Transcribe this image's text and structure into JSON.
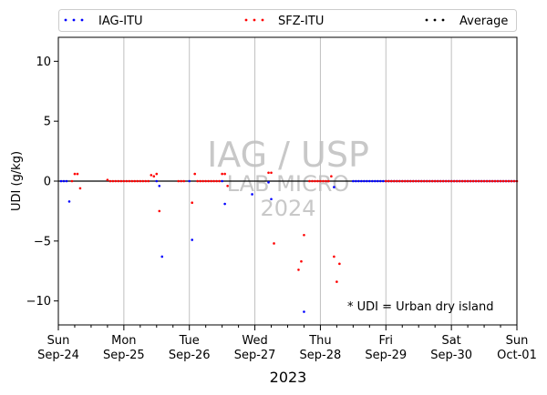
{
  "chart_data": {
    "type": "scatter",
    "title": "",
    "xlabel": "2023",
    "ylabel": "UDI (g/kg)",
    "ylim": [
      -12,
      12
    ],
    "xlim": [
      "2023-09-24",
      "2023-10-01"
    ],
    "yticks": [
      10,
      5,
      0,
      -5,
      -10
    ],
    "ytick_labels": [
      "10",
      "5",
      "0",
      "−5",
      "−10"
    ],
    "xticks": [
      {
        "date": "2023-09-24",
        "day": "Sun",
        "label": "Sep-24"
      },
      {
        "date": "2023-09-25",
        "day": "Mon",
        "label": "Sep-25"
      },
      {
        "date": "2023-09-26",
        "day": "Tue",
        "label": "Sep-26"
      },
      {
        "date": "2023-09-27",
        "day": "Wed",
        "label": "Sep-27"
      },
      {
        "date": "2023-09-28",
        "day": "Thu",
        "label": "Sep-28"
      },
      {
        "date": "2023-09-29",
        "day": "Fri",
        "label": "Sep-29"
      },
      {
        "date": "2023-09-30",
        "day": "Sat",
        "label": "Sep-30"
      },
      {
        "date": "2023-10-01",
        "day": "Sun",
        "label": "Oct-01"
      }
    ],
    "grid": "vertical lines at each day",
    "legend": {
      "placement": "top",
      "entries": [
        {
          "name": "IAG-ITU",
          "color": "#0000ff"
        },
        {
          "name": "SFZ-ITU",
          "color": "#ff0000"
        },
        {
          "name": "Average",
          "color": "#000000"
        }
      ]
    },
    "watermark": [
      "IAG / USP",
      "LAB MICRO",
      "2024"
    ],
    "annotation": "* UDI = Urban dry island",
    "series": [
      {
        "name": "IAG-ITU",
        "color": "#0000ff",
        "points": [
          {
            "x": "2023-09-24 01:00",
            "y": 0
          },
          {
            "x": "2023-09-24 02:00",
            "y": 0
          },
          {
            "x": "2023-09-24 03:00",
            "y": 0
          },
          {
            "x": "2023-09-24 04:00",
            "y": -1.7
          },
          {
            "x": "2023-09-25 12:00",
            "y": 0
          },
          {
            "x": "2023-09-25 13:00",
            "y": -0.4
          },
          {
            "x": "2023-09-25 14:00",
            "y": -6.3
          },
          {
            "x": "2023-09-26 00:00",
            "y": 0
          },
          {
            "x": "2023-09-26 01:00",
            "y": -4.9
          },
          {
            "x": "2023-09-26 12:00",
            "y": 0
          },
          {
            "x": "2023-09-26 13:00",
            "y": -1.9
          },
          {
            "x": "2023-09-26 23:00",
            "y": -1.1
          },
          {
            "x": "2023-09-27 05:00",
            "y": -0.1
          },
          {
            "x": "2023-09-27 06:00",
            "y": -1.5
          },
          {
            "x": "2023-09-27 18:00",
            "y": -10.9
          },
          {
            "x": "2023-09-28 05:00",
            "y": -0.5
          },
          {
            "x": "2023-09-28 12:00",
            "y": 0
          },
          {
            "x": "2023-09-28 13:00",
            "y": 0
          },
          {
            "x": "2023-09-28 14:00",
            "y": 0
          },
          {
            "x": "2023-09-28 15:00",
            "y": 0
          },
          {
            "x": "2023-09-28 16:00",
            "y": 0
          },
          {
            "x": "2023-09-28 17:00",
            "y": 0
          },
          {
            "x": "2023-09-28 18:00",
            "y": 0
          },
          {
            "x": "2023-09-28 19:00",
            "y": 0
          },
          {
            "x": "2023-09-28 20:00",
            "y": 0
          },
          {
            "x": "2023-09-28 21:00",
            "y": 0
          },
          {
            "x": "2023-09-28 22:00",
            "y": 0
          },
          {
            "x": "2023-09-28 23:00",
            "y": 0
          },
          {
            "x": "2023-09-29 00:00",
            "y": 0
          },
          {
            "x": "2023-09-29 01:00",
            "y": 0
          },
          {
            "x": "2023-09-29 02:00",
            "y": 0
          },
          {
            "x": "2023-09-29 03:00",
            "y": 0
          },
          {
            "x": "2023-09-29 04:00",
            "y": 0
          },
          {
            "x": "2023-09-29 05:00",
            "y": 0
          },
          {
            "x": "2023-09-29 06:00",
            "y": 0
          },
          {
            "x": "2023-09-29 07:00",
            "y": 0
          },
          {
            "x": "2023-09-29 08:00",
            "y": 0
          },
          {
            "x": "2023-09-29 09:00",
            "y": 0
          },
          {
            "x": "2023-09-29 10:00",
            "y": 0
          },
          {
            "x": "2023-09-29 11:00",
            "y": 0
          },
          {
            "x": "2023-09-29 12:00",
            "y": 0
          },
          {
            "x": "2023-09-29 13:00",
            "y": 0
          },
          {
            "x": "2023-09-29 14:00",
            "y": 0
          },
          {
            "x": "2023-09-29 15:00",
            "y": 0
          },
          {
            "x": "2023-09-29 16:00",
            "y": 0
          },
          {
            "x": "2023-09-29 17:00",
            "y": 0
          },
          {
            "x": "2023-09-29 18:00",
            "y": 0
          },
          {
            "x": "2023-09-29 19:00",
            "y": 0
          },
          {
            "x": "2023-09-29 20:00",
            "y": 0
          },
          {
            "x": "2023-09-29 21:00",
            "y": 0
          },
          {
            "x": "2023-09-29 22:00",
            "y": 0
          },
          {
            "x": "2023-09-29 23:00",
            "y": 0
          },
          {
            "x": "2023-09-30 00:00",
            "y": 0
          },
          {
            "x": "2023-09-30 01:00",
            "y": 0
          },
          {
            "x": "2023-09-30 02:00",
            "y": 0
          },
          {
            "x": "2023-09-30 03:00",
            "y": 0
          },
          {
            "x": "2023-09-30 04:00",
            "y": 0
          },
          {
            "x": "2023-09-30 05:00",
            "y": 0
          },
          {
            "x": "2023-09-30 06:00",
            "y": 0
          },
          {
            "x": "2023-09-30 07:00",
            "y": 0
          },
          {
            "x": "2023-09-30 08:00",
            "y": 0
          },
          {
            "x": "2023-09-30 09:00",
            "y": 0
          },
          {
            "x": "2023-09-30 10:00",
            "y": 0
          },
          {
            "x": "2023-09-30 11:00",
            "y": 0
          },
          {
            "x": "2023-09-30 12:00",
            "y": 0
          },
          {
            "x": "2023-09-30 13:00",
            "y": 0
          },
          {
            "x": "2023-09-30 14:00",
            "y": 0
          },
          {
            "x": "2023-09-30 15:00",
            "y": 0
          },
          {
            "x": "2023-09-30 16:00",
            "y": 0
          },
          {
            "x": "2023-09-30 17:00",
            "y": 0
          },
          {
            "x": "2023-09-30 18:00",
            "y": 0
          },
          {
            "x": "2023-09-30 19:00",
            "y": 0
          },
          {
            "x": "2023-09-30 20:00",
            "y": 0
          },
          {
            "x": "2023-09-30 21:00",
            "y": 0
          },
          {
            "x": "2023-09-30 22:00",
            "y": 0
          },
          {
            "x": "2023-09-30 23:00",
            "y": 0
          }
        ]
      },
      {
        "name": "SFZ-ITU",
        "color": "#ff0000",
        "points": [
          {
            "x": "2023-09-24 05:00",
            "y": 0
          },
          {
            "x": "2023-09-24 06:00",
            "y": 0.6
          },
          {
            "x": "2023-09-24 07:00",
            "y": 0.6
          },
          {
            "x": "2023-09-24 08:00",
            "y": -0.6
          },
          {
            "x": "2023-09-24 18:00",
            "y": 0.1
          },
          {
            "x": "2023-09-24 19:00",
            "y": 0
          },
          {
            "x": "2023-09-24 20:00",
            "y": 0
          },
          {
            "x": "2023-09-24 21:00",
            "y": 0
          },
          {
            "x": "2023-09-24 22:00",
            "y": 0
          },
          {
            "x": "2023-09-24 23:00",
            "y": 0
          },
          {
            "x": "2023-09-25 00:00",
            "y": 0
          },
          {
            "x": "2023-09-25 01:00",
            "y": 0
          },
          {
            "x": "2023-09-25 02:00",
            "y": 0
          },
          {
            "x": "2023-09-25 03:00",
            "y": 0
          },
          {
            "x": "2023-09-25 04:00",
            "y": 0
          },
          {
            "x": "2023-09-25 05:00",
            "y": 0
          },
          {
            "x": "2023-09-25 06:00",
            "y": 0
          },
          {
            "x": "2023-09-25 07:00",
            "y": 0
          },
          {
            "x": "2023-09-25 08:00",
            "y": 0
          },
          {
            "x": "2023-09-25 09:00",
            "y": 0
          },
          {
            "x": "2023-09-25 10:00",
            "y": 0.5
          },
          {
            "x": "2023-09-25 11:00",
            "y": 0.4
          },
          {
            "x": "2023-09-25 12:00",
            "y": 0.6
          },
          {
            "x": "2023-09-25 13:00",
            "y": -2.5
          },
          {
            "x": "2023-09-25 20:00",
            "y": 0
          },
          {
            "x": "2023-09-25 21:00",
            "y": 0
          },
          {
            "x": "2023-09-25 22:00",
            "y": 0
          },
          {
            "x": "2023-09-26 01:00",
            "y": -1.8
          },
          {
            "x": "2023-09-26 02:00",
            "y": 0.6
          },
          {
            "x": "2023-09-26 03:00",
            "y": 0
          },
          {
            "x": "2023-09-26 04:00",
            "y": 0
          },
          {
            "x": "2023-09-26 05:00",
            "y": 0
          },
          {
            "x": "2023-09-26 06:00",
            "y": 0
          },
          {
            "x": "2023-09-26 07:00",
            "y": 0
          },
          {
            "x": "2023-09-26 08:00",
            "y": 0
          },
          {
            "x": "2023-09-26 09:00",
            "y": 0
          },
          {
            "x": "2023-09-26 10:00",
            "y": 0
          },
          {
            "x": "2023-09-26 11:00",
            "y": 0
          },
          {
            "x": "2023-09-26 12:00",
            "y": 0.6
          },
          {
            "x": "2023-09-26 13:00",
            "y": 0.6
          },
          {
            "x": "2023-09-26 14:00",
            "y": -0.4
          },
          {
            "x": "2023-09-27 05:00",
            "y": 0.7
          },
          {
            "x": "2023-09-27 06:00",
            "y": 0.7
          },
          {
            "x": "2023-09-27 07:00",
            "y": -5.2
          },
          {
            "x": "2023-09-27 16:00",
            "y": -7.4
          },
          {
            "x": "2023-09-27 17:00",
            "y": -6.7
          },
          {
            "x": "2023-09-27 18:00",
            "y": -4.5
          },
          {
            "x": "2023-09-27 20:00",
            "y": 0
          },
          {
            "x": "2023-09-27 21:00",
            "y": 0
          },
          {
            "x": "2023-09-27 22:00",
            "y": 0
          },
          {
            "x": "2023-09-27 23:00",
            "y": 0
          },
          {
            "x": "2023-09-28 00:00",
            "y": 0
          },
          {
            "x": "2023-09-28 01:00",
            "y": 0
          },
          {
            "x": "2023-09-28 02:00",
            "y": 0
          },
          {
            "x": "2023-09-28 03:00",
            "y": 0
          },
          {
            "x": "2023-09-28 04:00",
            "y": 0.4
          },
          {
            "x": "2023-09-28 05:00",
            "y": -6.3
          },
          {
            "x": "2023-09-28 06:00",
            "y": -8.4
          },
          {
            "x": "2023-09-28 07:00",
            "y": -6.9
          },
          {
            "x": "2023-09-29 00:00",
            "y": 0
          },
          {
            "x": "2023-09-29 01:00",
            "y": 0
          },
          {
            "x": "2023-09-29 02:00",
            "y": 0
          },
          {
            "x": "2023-09-29 03:00",
            "y": 0
          },
          {
            "x": "2023-09-29 04:00",
            "y": 0
          },
          {
            "x": "2023-09-29 05:00",
            "y": 0
          },
          {
            "x": "2023-09-29 06:00",
            "y": 0
          },
          {
            "x": "2023-09-29 07:00",
            "y": 0
          },
          {
            "x": "2023-09-29 08:00",
            "y": 0
          },
          {
            "x": "2023-09-29 09:00",
            "y": 0
          },
          {
            "x": "2023-09-29 10:00",
            "y": 0
          },
          {
            "x": "2023-09-29 11:00",
            "y": 0
          },
          {
            "x": "2023-09-29 12:00",
            "y": 0
          },
          {
            "x": "2023-09-29 13:00",
            "y": 0
          },
          {
            "x": "2023-09-29 14:00",
            "y": 0
          },
          {
            "x": "2023-09-29 15:00",
            "y": 0
          },
          {
            "x": "2023-09-29 16:00",
            "y": 0
          },
          {
            "x": "2023-09-29 17:00",
            "y": 0
          },
          {
            "x": "2023-09-29 18:00",
            "y": 0
          },
          {
            "x": "2023-09-29 19:00",
            "y": 0
          },
          {
            "x": "2023-09-29 20:00",
            "y": 0
          },
          {
            "x": "2023-09-29 21:00",
            "y": 0
          },
          {
            "x": "2023-09-29 22:00",
            "y": 0
          },
          {
            "x": "2023-09-29 23:00",
            "y": 0
          },
          {
            "x": "2023-09-30 00:00",
            "y": 0
          },
          {
            "x": "2023-09-30 01:00",
            "y": 0
          },
          {
            "x": "2023-09-30 02:00",
            "y": 0
          },
          {
            "x": "2023-09-30 03:00",
            "y": 0
          },
          {
            "x": "2023-09-30 04:00",
            "y": 0
          },
          {
            "x": "2023-09-30 05:00",
            "y": 0
          },
          {
            "x": "2023-09-30 06:00",
            "y": 0
          },
          {
            "x": "2023-09-30 07:00",
            "y": 0
          },
          {
            "x": "2023-09-30 08:00",
            "y": 0
          },
          {
            "x": "2023-09-30 09:00",
            "y": 0
          },
          {
            "x": "2023-09-30 10:00",
            "y": 0
          },
          {
            "x": "2023-09-30 11:00",
            "y": 0
          },
          {
            "x": "2023-09-30 12:00",
            "y": 0
          },
          {
            "x": "2023-09-30 13:00",
            "y": 0
          },
          {
            "x": "2023-09-30 14:00",
            "y": 0
          },
          {
            "x": "2023-09-30 15:00",
            "y": 0
          },
          {
            "x": "2023-09-30 16:00",
            "y": 0
          },
          {
            "x": "2023-09-30 17:00",
            "y": 0
          },
          {
            "x": "2023-09-30 18:00",
            "y": 0
          },
          {
            "x": "2023-09-30 19:00",
            "y": 0
          },
          {
            "x": "2023-09-30 20:00",
            "y": 0
          },
          {
            "x": "2023-09-30 21:00",
            "y": 0
          },
          {
            "x": "2023-09-30 22:00",
            "y": 0
          },
          {
            "x": "2023-09-30 23:00",
            "y": 0
          },
          {
            "x": "2023-10-01 00:00",
            "y": 0
          }
        ]
      },
      {
        "name": "Average",
        "color": "#000000",
        "points": [
          {
            "x": "2023-09-24 00:00",
            "y": 0
          },
          {
            "x": "2023-10-01 00:00",
            "y": 0
          }
        ]
      }
    ]
  }
}
